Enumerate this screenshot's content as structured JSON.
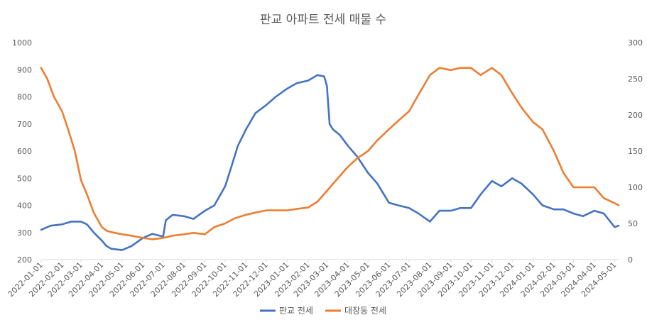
{
  "chart_data": {
    "type": "line",
    "title": "판교 아파트 전세 매물 수",
    "x_ticks": [
      "2022-01-01",
      "2022-02-01",
      "2022-03-01",
      "2022-04-01",
      "2022-05-01",
      "2022-06-01",
      "2022-07-01",
      "2022-08-01",
      "2022-09-01",
      "2022-10-01",
      "2022-11-01",
      "2022-12-01",
      "2023-01-01",
      "2023-02-01",
      "2023-03-01",
      "2023-04-01",
      "2023-05-01",
      "2023-06-01",
      "2023-07-01",
      "2023-08-01",
      "2023-09-01",
      "2023-10-01",
      "2023-11-01",
      "2023-12-01",
      "2024-01-01",
      "2024-02-01",
      "2024-03-01",
      "2024-04-01",
      "2024-05-01"
    ],
    "y_left": {
      "min": 200,
      "max": 1000,
      "step": 100,
      "ticks": [
        "200",
        "300",
        "400",
        "500",
        "600",
        "700",
        "800",
        "900",
        "1000"
      ]
    },
    "y_right": {
      "min": 0,
      "max": 300,
      "step": 50,
      "ticks": [
        "0",
        "50",
        "100",
        "150",
        "200",
        "250",
        "300"
      ]
    },
    "grid": false,
    "legend_position": "bottom",
    "series": [
      {
        "name": "판교 전세",
        "axis": "left",
        "color": "#4472C4",
        "x": [
          "2022-01-01",
          "2022-01-15",
          "2022-02-01",
          "2022-02-15",
          "2022-03-01",
          "2022-03-10",
          "2022-03-20",
          "2022-04-01",
          "2022-04-08",
          "2022-04-15",
          "2022-05-01",
          "2022-05-15",
          "2022-06-01",
          "2022-06-15",
          "2022-07-01",
          "2022-07-05",
          "2022-07-15",
          "2022-08-01",
          "2022-08-15",
          "2022-09-01",
          "2022-09-15",
          "2022-10-01",
          "2022-10-10",
          "2022-10-20",
          "2022-11-01",
          "2022-11-15",
          "2022-12-01",
          "2022-12-15",
          "2023-01-01",
          "2023-01-15",
          "2023-02-01",
          "2023-02-15",
          "2023-02-25",
          "2023-03-01",
          "2023-03-05",
          "2023-03-10",
          "2023-03-20",
          "2023-04-01",
          "2023-04-15",
          "2023-05-01",
          "2023-05-15",
          "2023-06-01",
          "2023-06-15",
          "2023-07-01",
          "2023-07-15",
          "2023-08-01",
          "2023-08-15",
          "2023-09-01",
          "2023-09-15",
          "2023-10-01",
          "2023-10-15",
          "2023-11-01",
          "2023-11-15",
          "2023-12-01",
          "2023-12-15",
          "2024-01-01",
          "2024-01-15",
          "2024-02-01",
          "2024-02-15",
          "2024-03-01",
          "2024-03-15",
          "2024-04-01",
          "2024-04-15",
          "2024-05-01",
          "2024-05-07"
        ],
        "values": [
          310,
          325,
          330,
          340,
          340,
          330,
          300,
          270,
          250,
          240,
          235,
          250,
          280,
          295,
          285,
          345,
          365,
          360,
          350,
          380,
          400,
          470,
          540,
          620,
          680,
          740,
          770,
          800,
          830,
          850,
          860,
          880,
          875,
          840,
          700,
          680,
          660,
          620,
          580,
          520,
          480,
          410,
          400,
          390,
          370,
          340,
          380,
          380,
          390,
          390,
          440,
          490,
          470,
          500,
          480,
          440,
          400,
          385,
          385,
          370,
          360,
          380,
          370,
          320,
          325
        ]
      },
      {
        "name": "대장동 전세",
        "axis": "right",
        "color": "#ED7D31",
        "x": [
          "2022-01-01",
          "2022-01-10",
          "2022-01-20",
          "2022-02-01",
          "2022-02-10",
          "2022-02-20",
          "2022-03-01",
          "2022-03-10",
          "2022-03-20",
          "2022-04-01",
          "2022-04-08",
          "2022-04-15",
          "2022-05-01",
          "2022-05-15",
          "2022-06-01",
          "2022-06-15",
          "2022-07-01",
          "2022-07-15",
          "2022-08-01",
          "2022-08-15",
          "2022-09-01",
          "2022-09-15",
          "2022-10-01",
          "2022-10-15",
          "2022-11-01",
          "2022-11-15",
          "2022-12-01",
          "2022-12-15",
          "2023-01-01",
          "2023-01-15",
          "2023-02-01",
          "2023-02-15",
          "2023-03-01",
          "2023-03-15",
          "2023-04-01",
          "2023-04-15",
          "2023-05-01",
          "2023-05-15",
          "2023-06-01",
          "2023-06-15",
          "2023-07-01",
          "2023-07-15",
          "2023-08-01",
          "2023-08-15",
          "2023-09-01",
          "2023-09-15",
          "2023-10-01",
          "2023-10-15",
          "2023-11-01",
          "2023-11-15",
          "2023-12-01",
          "2023-12-15",
          "2024-01-01",
          "2024-01-15",
          "2024-02-01",
          "2024-02-15",
          "2024-03-01",
          "2024-03-15",
          "2024-04-01",
          "2024-04-15",
          "2024-05-01",
          "2024-05-07"
        ],
        "values": [
          265,
          250,
          225,
          205,
          180,
          150,
          110,
          90,
          65,
          45,
          40,
          38,
          35,
          33,
          30,
          28,
          30,
          33,
          35,
          37,
          35,
          45,
          50,
          57,
          62,
          65,
          68,
          68,
          68,
          70,
          72,
          80,
          95,
          110,
          128,
          140,
          150,
          165,
          180,
          192,
          205,
          228,
          255,
          265,
          262,
          265,
          265,
          255,
          265,
          255,
          230,
          210,
          190,
          180,
          150,
          120,
          100,
          100,
          100,
          85,
          78,
          75
        ]
      }
    ]
  }
}
